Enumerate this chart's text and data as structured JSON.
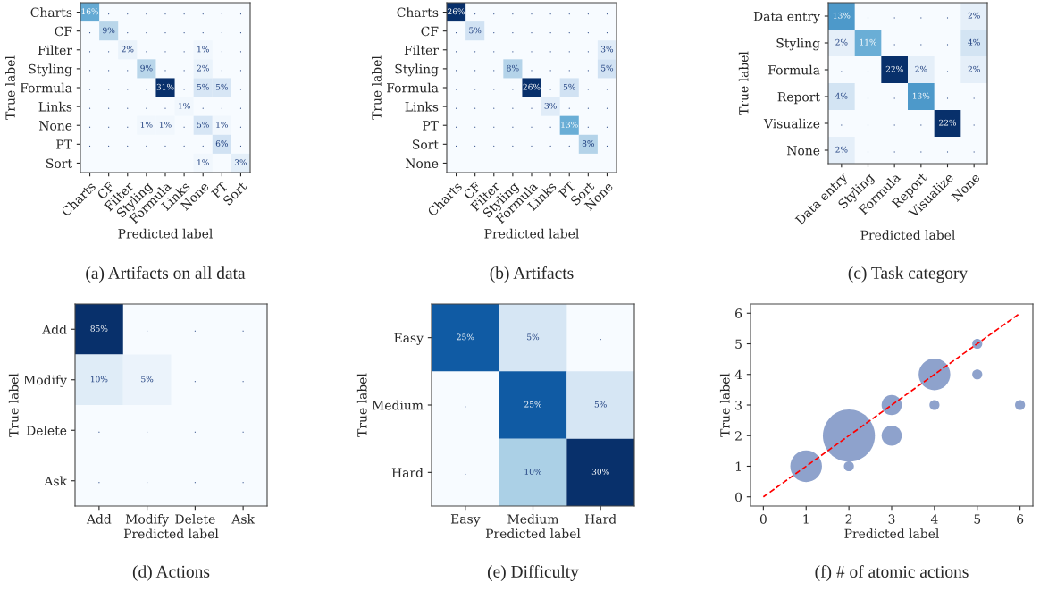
{
  "chart_data": [
    {
      "type": "heatmap",
      "title": "(a) Artifacts on all data",
      "xlabel": "Predicted label",
      "ylabel": "True label",
      "categories": [
        "Charts",
        "CF",
        "Filter",
        "Styling",
        "Formula",
        "Links",
        "None",
        "PT",
        "Sort"
      ],
      "y_categories": [
        "Charts",
        "CF",
        "Filter",
        "Styling",
        "Formula",
        "Links",
        "None",
        "PT",
        "Sort"
      ],
      "cells": [
        [
          16,
          null,
          null,
          null,
          null,
          null,
          null,
          null,
          null
        ],
        [
          null,
          9,
          null,
          null,
          null,
          null,
          null,
          null,
          null
        ],
        [
          null,
          null,
          2,
          null,
          null,
          null,
          1,
          null,
          null
        ],
        [
          null,
          null,
          null,
          9,
          null,
          null,
          2,
          null,
          null
        ],
        [
          null,
          null,
          null,
          null,
          31,
          null,
          5,
          5,
          null
        ],
        [
          null,
          null,
          null,
          null,
          null,
          1,
          null,
          null,
          null
        ],
        [
          null,
          null,
          null,
          1,
          1,
          null,
          5,
          1,
          null
        ],
        [
          null,
          null,
          null,
          null,
          null,
          null,
          null,
          6,
          null
        ],
        [
          null,
          null,
          null,
          null,
          null,
          null,
          1,
          null,
          3
        ]
      ],
      "cell_labels": [
        [
          "16%",
          ".",
          ".",
          ".",
          ".",
          ".",
          ".",
          ".",
          "."
        ],
        [
          ".",
          "9%",
          ".",
          ".",
          ".",
          ".",
          ".",
          ".",
          "."
        ],
        [
          ".",
          ".",
          "2%",
          ".",
          ".",
          ".",
          "1%",
          ".",
          "."
        ],
        [
          ".",
          ".",
          ".",
          "9%",
          ".",
          ".",
          "2%",
          ".",
          "."
        ],
        [
          ".",
          ".",
          ".",
          ".",
          "31%",
          ".",
          "5%",
          "5%",
          "."
        ],
        [
          ".",
          ".",
          ".",
          ".",
          ".",
          "1%",
          ".",
          ".",
          "."
        ],
        [
          ".",
          ".",
          ".",
          "1%",
          "1%",
          ".",
          "5%",
          "1%",
          "."
        ],
        [
          ".",
          ".",
          ".",
          ".",
          ".",
          ".",
          ".",
          "6%",
          "."
        ],
        [
          ".",
          ".",
          ".",
          ".",
          ".",
          ".",
          "1%",
          ".",
          "3%"
        ]
      ]
    },
    {
      "type": "heatmap",
      "title": "(b) Artifacts",
      "xlabel": "Predicted label",
      "ylabel": "True label",
      "categories": [
        "Charts",
        "CF",
        "Filter",
        "Styling",
        "Formula",
        "Links",
        "PT",
        "Sort",
        "None"
      ],
      "y_categories": [
        "Charts",
        "CF",
        "Filter",
        "Styling",
        "Formula",
        "Links",
        "PT",
        "Sort",
        "None"
      ],
      "cells": [
        [
          26,
          null,
          null,
          null,
          null,
          null,
          null,
          null,
          null
        ],
        [
          null,
          5,
          null,
          null,
          null,
          null,
          null,
          null,
          null
        ],
        [
          null,
          null,
          null,
          null,
          null,
          null,
          null,
          null,
          3
        ],
        [
          null,
          null,
          null,
          8,
          null,
          null,
          null,
          null,
          5
        ],
        [
          null,
          null,
          null,
          null,
          26,
          null,
          5,
          null,
          null
        ],
        [
          null,
          null,
          null,
          null,
          null,
          3,
          null,
          null,
          null
        ],
        [
          null,
          null,
          null,
          null,
          null,
          null,
          13,
          null,
          null
        ],
        [
          null,
          null,
          null,
          null,
          null,
          null,
          null,
          8,
          null
        ],
        [
          null,
          null,
          null,
          null,
          null,
          null,
          null,
          null,
          null
        ]
      ],
      "cell_labels": [
        [
          "26%",
          ".",
          ".",
          ".",
          ".",
          ".",
          ".",
          ".",
          "."
        ],
        [
          ".",
          "5%",
          ".",
          ".",
          ".",
          ".",
          ".",
          ".",
          "."
        ],
        [
          ".",
          ".",
          ".",
          ".",
          ".",
          ".",
          ".",
          ".",
          "3%"
        ],
        [
          ".",
          ".",
          ".",
          "8%",
          ".",
          ".",
          ".",
          ".",
          "5%"
        ],
        [
          ".",
          ".",
          ".",
          ".",
          "26%",
          ".",
          "5%",
          ".",
          "."
        ],
        [
          ".",
          ".",
          ".",
          ".",
          ".",
          "3%",
          ".",
          ".",
          "."
        ],
        [
          ".",
          ".",
          ".",
          ".",
          ".",
          ".",
          "13%",
          ".",
          "."
        ],
        [
          ".",
          ".",
          ".",
          ".",
          ".",
          ".",
          ".",
          "8%",
          "."
        ],
        [
          ".",
          ".",
          ".",
          ".",
          ".",
          ".",
          ".",
          ".",
          "."
        ]
      ]
    },
    {
      "type": "heatmap",
      "title": "(c) Task category",
      "xlabel": "Predicted label",
      "ylabel": "True label",
      "categories": [
        "Data entry",
        "Styling",
        "Formula",
        "Report",
        "Visualize",
        "None"
      ],
      "y_categories": [
        "Data entry",
        "Styling",
        "Formula",
        "Report",
        "Visualize",
        "None"
      ],
      "cells": [
        [
          13,
          null,
          null,
          null,
          null,
          2
        ],
        [
          2,
          11,
          null,
          null,
          null,
          4
        ],
        [
          null,
          null,
          22,
          2,
          null,
          2
        ],
        [
          4,
          null,
          null,
          13,
          null,
          null
        ],
        [
          null,
          null,
          null,
          null,
          22,
          null
        ],
        [
          2,
          null,
          null,
          null,
          null,
          null
        ]
      ],
      "cell_labels": [
        [
          "13%",
          ".",
          ".",
          ".",
          ".",
          "2%"
        ],
        [
          "2%",
          "11%",
          ".",
          ".",
          ".",
          "4%"
        ],
        [
          ".",
          ".",
          "22%",
          "2%",
          ".",
          "2%"
        ],
        [
          "4%",
          ".",
          ".",
          "13%",
          ".",
          "."
        ],
        [
          ".",
          ".",
          ".",
          ".",
          "22%",
          "."
        ],
        [
          "2%",
          ".",
          ".",
          ".",
          ".",
          "."
        ]
      ]
    },
    {
      "type": "heatmap",
      "title": "(d) Actions",
      "xlabel": "Predicted label",
      "ylabel": "True label",
      "categories": [
        "Add",
        "Modify",
        "Delete",
        "Ask"
      ],
      "y_categories": [
        "Add",
        "Modify",
        "Delete",
        "Ask"
      ],
      "cells": [
        [
          85,
          null,
          null,
          null
        ],
        [
          10,
          5,
          null,
          null
        ],
        [
          null,
          null,
          null,
          null
        ],
        [
          null,
          null,
          null,
          null
        ]
      ],
      "cell_labels": [
        [
          "85%",
          ".",
          ".",
          "."
        ],
        [
          "10%",
          "5%",
          ".",
          "."
        ],
        [
          ".",
          ".",
          ".",
          "."
        ],
        [
          ".",
          ".",
          ".",
          "."
        ]
      ]
    },
    {
      "type": "heatmap",
      "title": "(e) Difficulty",
      "xlabel": "Predicted label",
      "ylabel": "True label",
      "categories": [
        "Easy",
        "Medium",
        "Hard"
      ],
      "y_categories": [
        "Easy",
        "Medium",
        "Hard"
      ],
      "cells": [
        [
          25,
          5,
          null
        ],
        [
          null,
          25,
          5
        ],
        [
          null,
          10,
          30
        ]
      ],
      "cell_labels": [
        [
          "25%",
          "5%",
          "."
        ],
        [
          ".",
          "25%",
          "5%"
        ],
        [
          ".",
          "10%",
          "30%"
        ]
      ]
    },
    {
      "type": "bubble",
      "title": "(f) # of atomic actions",
      "xlabel": "Predicted label",
      "ylabel": "True label",
      "xlim": [
        -0.3,
        6.3
      ],
      "ylim": [
        -0.3,
        6.3
      ],
      "xticks": [
        0,
        1,
        2,
        3,
        4,
        5,
        6
      ],
      "yticks": [
        0,
        1,
        2,
        3,
        4,
        5,
        6
      ],
      "series": [
        {
          "type": "bubble",
          "color": "#8ea2cc",
          "x": [
            1,
            2,
            2,
            3,
            3,
            4,
            4,
            5,
            5,
            6
          ],
          "values": [
            1,
            2,
            1,
            3,
            2,
            4,
            3,
            5,
            4,
            3
          ],
          "sizes": [
            0.37,
            1,
            0.037,
            0.15,
            0.15,
            0.37,
            0.037,
            0.037,
            0.037,
            0.037
          ]
        },
        {
          "type": "line",
          "color": "#ff0000",
          "line_style": "dashed",
          "x": [
            0,
            6
          ],
          "values": [
            0,
            6
          ]
        }
      ]
    }
  ]
}
